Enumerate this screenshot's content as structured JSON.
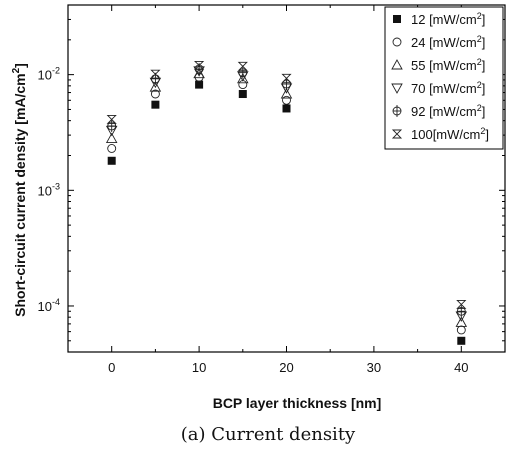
{
  "chart_data": {
    "type": "scatter",
    "xlabel": "BCP layer thickness [nm]",
    "ylabel": "Short-circuit current density [mA/cm",
    "ylabel_sup": "2",
    "ylabel_end": "]",
    "caption": "(a) Current density",
    "xlim": [
      -5,
      45
    ],
    "ylim": [
      4e-05,
      0.04
    ],
    "yscale": "log",
    "x_ticks": [
      0,
      10,
      20,
      30,
      40
    ],
    "y_ticks": [
      {
        "value": 0.0001,
        "base": "10",
        "exp": "-4"
      },
      {
        "value": 0.001,
        "base": "10",
        "exp": "-3"
      },
      {
        "value": 0.01,
        "base": "10",
        "exp": "-2"
      }
    ],
    "legend_position": "top-right",
    "x": [
      0,
      5,
      10,
      15,
      20,
      40
    ],
    "series": [
      {
        "name": "12 [mW/cm",
        "sup": "2",
        "end": "]",
        "marker": "filled-square",
        "values": [
          0.0018,
          0.0055,
          0.0082,
          0.0068,
          0.0051,
          5e-05
        ]
      },
      {
        "name": "24 [mW/cm",
        "sup": "2",
        "end": "]",
        "marker": "circle",
        "values": [
          0.0023,
          0.0068,
          0.0095,
          0.0082,
          0.006,
          6.2e-05
        ]
      },
      {
        "name": "55 [mW/cm",
        "sup": "2",
        "end": "]",
        "marker": "triangle-up",
        "values": [
          0.0028,
          0.0078,
          0.0102,
          0.0092,
          0.0068,
          7.2e-05
        ]
      },
      {
        "name": "70 [mW/cm",
        "sup": "2",
        "end": "]",
        "marker": "triangle-down",
        "values": [
          0.0033,
          0.0086,
          0.0108,
          0.0098,
          0.0077,
          8.2e-05
        ]
      },
      {
        "name": "92 [mW/cm",
        "sup": "2",
        "end": "]",
        "marker": "circle-cross",
        "values": [
          0.0036,
          0.0092,
          0.0112,
          0.0104,
          0.0083,
          9e-05
        ]
      },
      {
        "name": "100[mW/cm",
        "sup": "2",
        "end": "]",
        "marker": "bowtie",
        "values": [
          0.0041,
          0.0101,
          0.012,
          0.0118,
          0.0093,
          0.000103
        ]
      }
    ]
  }
}
